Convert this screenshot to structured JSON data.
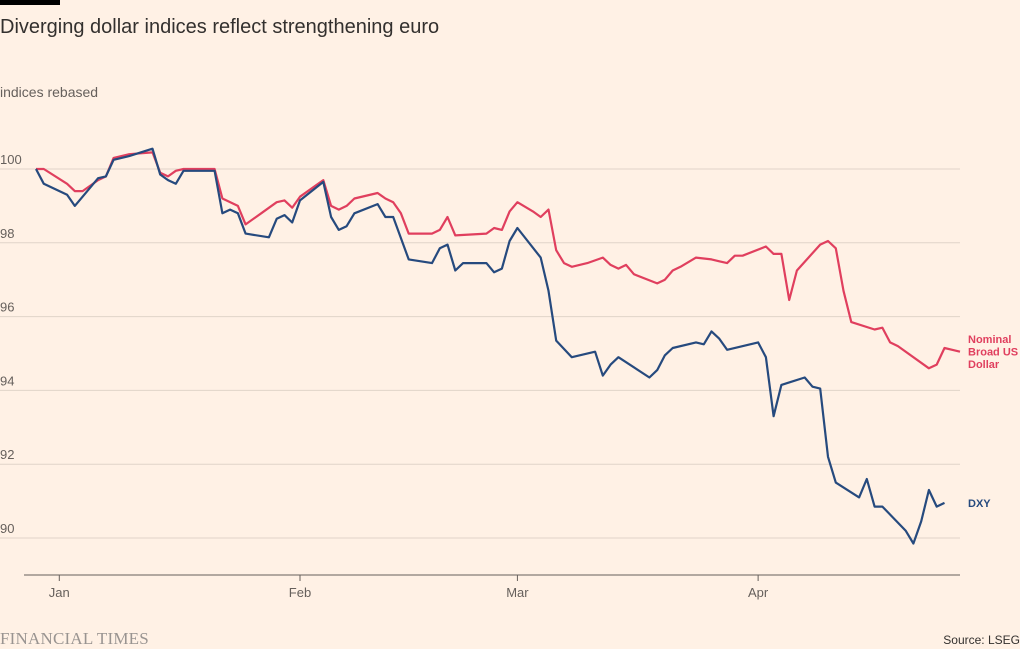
{
  "page": {
    "title": "Diverging dollar indices reflect strengthening euro",
    "unit_label": "indices rebased",
    "logo": "FINANCIAL TIMES",
    "source": "Source: LSEG"
  },
  "chart_data": {
    "type": "line",
    "title": "Diverging dollar indices reflect strengthening euro",
    "ylabel": "indices rebased",
    "xlabel": "",
    "ylim": [
      89,
      102
    ],
    "yticks": [
      90,
      92,
      94,
      96,
      98,
      100
    ],
    "xlim": [
      "2025-01-01",
      "2025-04-22"
    ],
    "xticks": [
      {
        "label": "Jan",
        "date": "2025-01-01"
      },
      {
        "label": "Feb",
        "date": "2025-02-01"
      },
      {
        "label": "Mar",
        "date": "2025-03-01"
      },
      {
        "label": "Apr",
        "date": "2025-04-01"
      }
    ],
    "grid": true,
    "legend": "direct labels at right end of lines",
    "series": [
      {
        "name": "Nominal Broad US Dollar",
        "label_lines": [
          "Nominal",
          "Broad US",
          "Dollar"
        ],
        "color": "#e03f5e",
        "points": [
          [
            "2024-12-29",
            100.0
          ],
          [
            "2024-12-30",
            100.0
          ],
          [
            "2025-01-02",
            99.6
          ],
          [
            "2025-01-03",
            99.4
          ],
          [
            "2025-01-04",
            99.4
          ],
          [
            "2025-01-06",
            99.7
          ],
          [
            "2025-01-07",
            99.8
          ],
          [
            "2025-01-08",
            100.3
          ],
          [
            "2025-01-10",
            100.4
          ],
          [
            "2025-01-13",
            100.45
          ],
          [
            "2025-01-14",
            99.9
          ],
          [
            "2025-01-15",
            99.8
          ],
          [
            "2025-01-16",
            99.95
          ],
          [
            "2025-01-17",
            100.0
          ],
          [
            "2025-01-21",
            100.0
          ],
          [
            "2025-01-22",
            99.2
          ],
          [
            "2025-01-24",
            99.0
          ],
          [
            "2025-01-25",
            98.5
          ],
          [
            "2025-01-27",
            98.8
          ],
          [
            "2025-01-29",
            99.1
          ],
          [
            "2025-01-30",
            99.15
          ],
          [
            "2025-01-31",
            98.95
          ],
          [
            "2025-02-01",
            99.25
          ],
          [
            "2025-02-04",
            99.7
          ],
          [
            "2025-02-05",
            99.0
          ],
          [
            "2025-02-06",
            98.9
          ],
          [
            "2025-02-07",
            99.0
          ],
          [
            "2025-02-08",
            99.2
          ],
          [
            "2025-02-11",
            99.35
          ],
          [
            "2025-02-12",
            99.2
          ],
          [
            "2025-02-13",
            99.1
          ],
          [
            "2025-02-14",
            98.8
          ],
          [
            "2025-02-15",
            98.25
          ],
          [
            "2025-02-18",
            98.25
          ],
          [
            "2025-02-19",
            98.35
          ],
          [
            "2025-02-20",
            98.7
          ],
          [
            "2025-02-21",
            98.2
          ],
          [
            "2025-02-25",
            98.25
          ],
          [
            "2025-02-26",
            98.4
          ],
          [
            "2025-02-27",
            98.35
          ],
          [
            "2025-02-28",
            98.85
          ],
          [
            "2025-03-01",
            99.1
          ],
          [
            "2025-03-03",
            98.85
          ],
          [
            "2025-03-04",
            98.7
          ],
          [
            "2025-03-05",
            98.9
          ],
          [
            "2025-03-06",
            97.8
          ],
          [
            "2025-03-07",
            97.45
          ],
          [
            "2025-03-08",
            97.35
          ],
          [
            "2025-03-10",
            97.45
          ],
          [
            "2025-03-12",
            97.6
          ],
          [
            "2025-03-13",
            97.4
          ],
          [
            "2025-03-14",
            97.3
          ],
          [
            "2025-03-15",
            97.4
          ],
          [
            "2025-03-16",
            97.15
          ],
          [
            "2025-03-19",
            96.9
          ],
          [
            "2025-03-20",
            97.0
          ],
          [
            "2025-03-21",
            97.25
          ],
          [
            "2025-03-22",
            97.35
          ],
          [
            "2025-03-24",
            97.6
          ],
          [
            "2025-03-26",
            97.55
          ],
          [
            "2025-03-27",
            97.5
          ],
          [
            "2025-03-28",
            97.45
          ],
          [
            "2025-03-29",
            97.65
          ],
          [
            "2025-03-30",
            97.65
          ],
          [
            "2025-04-02",
            97.9
          ],
          [
            "2025-04-03",
            97.7
          ],
          [
            "2025-04-04",
            97.7
          ],
          [
            "2025-04-05",
            96.45
          ],
          [
            "2025-04-06",
            97.25
          ],
          [
            "2025-04-09",
            97.95
          ],
          [
            "2025-04-10",
            98.05
          ],
          [
            "2025-04-11",
            97.85
          ],
          [
            "2025-04-12",
            96.7
          ],
          [
            "2025-04-13",
            95.85
          ],
          [
            "2025-04-16",
            95.65
          ],
          [
            "2025-04-17",
            95.7
          ],
          [
            "2025-04-18",
            95.3
          ],
          [
            "2025-04-19",
            95.2
          ],
          [
            "2025-04-23",
            94.6
          ],
          [
            "2025-04-24",
            94.7
          ],
          [
            "2025-04-25",
            95.15
          ],
          [
            "2025-04-26",
            95.1
          ],
          [
            "2025-04-27",
            95.05
          ]
        ]
      },
      {
        "name": "DXY",
        "label_lines": [
          "DXY"
        ],
        "color": "#264a7e",
        "points": [
          [
            "2024-12-29",
            100.0
          ],
          [
            "2024-12-30",
            99.6
          ],
          [
            "2025-01-02",
            99.3
          ],
          [
            "2025-01-03",
            99.0
          ],
          [
            "2025-01-04",
            99.25
          ],
          [
            "2025-01-06",
            99.75
          ],
          [
            "2025-01-07",
            99.8
          ],
          [
            "2025-01-08",
            100.25
          ],
          [
            "2025-01-10",
            100.35
          ],
          [
            "2025-01-13",
            100.55
          ],
          [
            "2025-01-14",
            99.85
          ],
          [
            "2025-01-15",
            99.7
          ],
          [
            "2025-01-16",
            99.6
          ],
          [
            "2025-01-17",
            99.95
          ],
          [
            "2025-01-21",
            99.95
          ],
          [
            "2025-01-22",
            98.8
          ],
          [
            "2025-01-23",
            98.9
          ],
          [
            "2025-01-24",
            98.8
          ],
          [
            "2025-01-25",
            98.25
          ],
          [
            "2025-01-28",
            98.15
          ],
          [
            "2025-01-29",
            98.65
          ],
          [
            "2025-01-30",
            98.75
          ],
          [
            "2025-01-31",
            98.55
          ],
          [
            "2025-02-01",
            99.15
          ],
          [
            "2025-02-04",
            99.65
          ],
          [
            "2025-02-05",
            98.7
          ],
          [
            "2025-02-06",
            98.35
          ],
          [
            "2025-02-07",
            98.45
          ],
          [
            "2025-02-08",
            98.8
          ],
          [
            "2025-02-11",
            99.05
          ],
          [
            "2025-02-12",
            98.7
          ],
          [
            "2025-02-13",
            98.7
          ],
          [
            "2025-02-15",
            97.55
          ],
          [
            "2025-02-18",
            97.45
          ],
          [
            "2025-02-19",
            97.85
          ],
          [
            "2025-02-20",
            97.95
          ],
          [
            "2025-02-21",
            97.25
          ],
          [
            "2025-02-22",
            97.45
          ],
          [
            "2025-02-25",
            97.45
          ],
          [
            "2025-02-26",
            97.2
          ],
          [
            "2025-02-27",
            97.3
          ],
          [
            "2025-02-28",
            98.05
          ],
          [
            "2025-03-01",
            98.4
          ],
          [
            "2025-03-04",
            97.6
          ],
          [
            "2025-03-05",
            96.7
          ],
          [
            "2025-03-06",
            95.35
          ],
          [
            "2025-03-08",
            94.9
          ],
          [
            "2025-03-11",
            95.05
          ],
          [
            "2025-03-12",
            94.4
          ],
          [
            "2025-03-13",
            94.7
          ],
          [
            "2025-03-14",
            94.9
          ],
          [
            "2025-03-18",
            94.35
          ],
          [
            "2025-03-19",
            94.55
          ],
          [
            "2025-03-20",
            94.95
          ],
          [
            "2025-03-21",
            95.15
          ],
          [
            "2025-03-24",
            95.3
          ],
          [
            "2025-03-25",
            95.25
          ],
          [
            "2025-03-26",
            95.6
          ],
          [
            "2025-03-27",
            95.4
          ],
          [
            "2025-03-28",
            95.1
          ],
          [
            "2025-04-01",
            95.3
          ],
          [
            "2025-04-02",
            94.9
          ],
          [
            "2025-04-03",
            93.3
          ],
          [
            "2025-04-04",
            94.15
          ],
          [
            "2025-04-07",
            94.35
          ],
          [
            "2025-04-08",
            94.1
          ],
          [
            "2025-04-09",
            94.05
          ],
          [
            "2025-04-10",
            92.2
          ],
          [
            "2025-04-11",
            91.5
          ],
          [
            "2025-04-14",
            91.1
          ],
          [
            "2025-04-15",
            91.6
          ],
          [
            "2025-04-16",
            90.85
          ],
          [
            "2025-04-17",
            90.85
          ],
          [
            "2025-04-20",
            90.2
          ],
          [
            "2025-04-21",
            89.85
          ],
          [
            "2025-04-22",
            90.45
          ],
          [
            "2025-04-23",
            91.3
          ],
          [
            "2025-04-24",
            90.85
          ],
          [
            "2025-04-25",
            90.95
          ]
        ]
      }
    ]
  }
}
